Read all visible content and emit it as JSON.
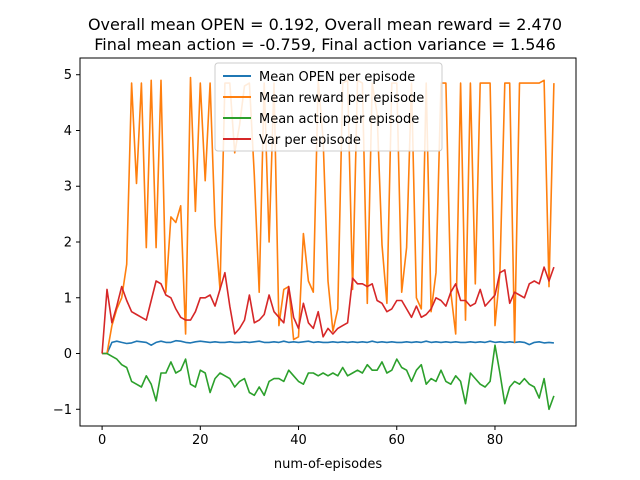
{
  "chart_data": {
    "type": "line",
    "title_lines": [
      "Overall mean OPEN = 0.192, Overall mean reward = 2.470",
      "Final mean action = -0.759, Final action variance = 1.546"
    ],
    "xlabel": "num-of-episodes",
    "ylabel": "",
    "xlim": [
      -4.5,
      96.5
    ],
    "ylim": [
      -1.3,
      5.3
    ],
    "xticks": [
      0,
      20,
      40,
      60,
      80
    ],
    "yticks": [
      -1,
      0,
      1,
      2,
      3,
      4,
      5
    ],
    "x_start": 0,
    "legend_position": "top-center",
    "series": [
      {
        "name": "Mean OPEN per episode",
        "color": "#1f77b4",
        "values": [
          0,
          0,
          0.2,
          0.22,
          0.2,
          0.18,
          0.19,
          0.22,
          0.21,
          0.2,
          0.15,
          0.2,
          0.22,
          0.2,
          0.2,
          0.23,
          0.22,
          0.2,
          0.19,
          0.21,
          0.22,
          0.21,
          0.2,
          0.21,
          0.2,
          0.2,
          0.21,
          0.2,
          0.2,
          0.21,
          0.2,
          0.21,
          0.22,
          0.2,
          0.2,
          0.21,
          0.2,
          0.22,
          0.2,
          0.21,
          0.2,
          0.21,
          0.22,
          0.2,
          0.21,
          0.2,
          0.2,
          0.21,
          0.2,
          0.21,
          0.2,
          0.21,
          0.2,
          0.21,
          0.2,
          0.22,
          0.2,
          0.21,
          0.2,
          0.21,
          0.2,
          0.2,
          0.21,
          0.2,
          0.21,
          0.2,
          0.22,
          0.2,
          0.21,
          0.2,
          0.21,
          0.2,
          0.21,
          0.2,
          0.2,
          0.21,
          0.2,
          0.21,
          0.2,
          0.22,
          0.2,
          0.21,
          0.2,
          0.21,
          0.2,
          0.21,
          0.2,
          0.16,
          0.2,
          0.21,
          0.19,
          0.2,
          0.19
        ]
      },
      {
        "name": "Mean reward per episode",
        "color": "#ff7f0e",
        "values": [
          0,
          0,
          0.5,
          0.8,
          1,
          1.6,
          4.85,
          3.05,
          4.85,
          1.9,
          4.9,
          1.9,
          4.9,
          1.1,
          2.45,
          2.35,
          2.65,
          0.35,
          4.95,
          2.55,
          4.85,
          3.1,
          4.85,
          2.3,
          1.15,
          4.85,
          4.85,
          3.6,
          4.1,
          4.8,
          4.85,
          3.2,
          1.1,
          4.85,
          2.0,
          4.85,
          0.5,
          1.15,
          1.2,
          0.25,
          0.3,
          2.15,
          1.3,
          1.1,
          4.9,
          3.85,
          1.3,
          0.4,
          0.8,
          4.85,
          4.9,
          1.15,
          4.9,
          4.85,
          0.9,
          4.85,
          4.3,
          1.95,
          0.9,
          4.85,
          4.85,
          1.1,
          1.9,
          4.85,
          1.0,
          0.8,
          4.85,
          0.75,
          1.45,
          4.85,
          4.85,
          1.1,
          0.35,
          4.85,
          0.6,
          4.85,
          1.25,
          4.85,
          4.85,
          4.85,
          0.5,
          1.45,
          4.85,
          4.85,
          0.2,
          4.85,
          4.85,
          4.85,
          4.85,
          4.85,
          4.9,
          1.2,
          4.85
        ]
      },
      {
        "name": "Mean action per episode",
        "color": "#2ca02c",
        "values": [
          0,
          0,
          -0.05,
          -0.1,
          -0.2,
          -0.25,
          -0.5,
          -0.55,
          -0.6,
          -0.4,
          -0.55,
          -0.85,
          -0.35,
          -0.35,
          -0.15,
          -0.35,
          -0.3,
          -0.1,
          -0.55,
          -0.6,
          -0.3,
          -0.35,
          -0.7,
          -0.45,
          -0.35,
          -0.4,
          -0.45,
          -0.6,
          -0.5,
          -0.45,
          -0.7,
          -0.75,
          -0.6,
          -0.75,
          -0.5,
          -0.45,
          -0.45,
          -0.5,
          -0.3,
          -0.4,
          -0.5,
          -0.55,
          -0.35,
          -0.35,
          -0.4,
          -0.35,
          -0.4,
          -0.35,
          -0.4,
          -0.25,
          -0.4,
          -0.35,
          -0.3,
          -0.35,
          -0.2,
          -0.3,
          -0.3,
          -0.15,
          -0.35,
          -0.3,
          -0.1,
          -0.25,
          -0.3,
          -0.5,
          -0.3,
          -0.2,
          -0.55,
          -0.45,
          -0.5,
          -0.3,
          -0.5,
          -0.55,
          -0.4,
          -0.5,
          -0.9,
          -0.35,
          -0.45,
          -0.55,
          -0.6,
          -0.5,
          0.15,
          -0.35,
          -0.9,
          -0.6,
          -0.5,
          -0.55,
          -0.45,
          -0.55,
          -0.6,
          -0.8,
          -0.45,
          -1.0,
          -0.76
        ]
      },
      {
        "name": "Var per episode",
        "color": "#d62728",
        "values": [
          0,
          1.15,
          0.55,
          0.85,
          1.2,
          0.95,
          0.75,
          0.7,
          0.65,
          0.6,
          0.95,
          1.3,
          1.25,
          1.05,
          1.0,
          0.8,
          0.65,
          0.6,
          0.6,
          0.75,
          1.0,
          1.0,
          1.05,
          0.85,
          1.15,
          1.45,
          0.85,
          0.35,
          0.45,
          0.6,
          1.05,
          0.55,
          0.6,
          0.7,
          1.05,
          0.75,
          0.65,
          0.55,
          1.2,
          0.65,
          0.45,
          0.9,
          0.55,
          0.45,
          0.75,
          0.3,
          0.45,
          0.35,
          0.45,
          0.5,
          0.55,
          1.35,
          1.25,
          1.25,
          1.2,
          1.25,
          0.95,
          0.9,
          0.75,
          0.8,
          0.95,
          0.95,
          0.8,
          0.65,
          0.85,
          0.65,
          0.7,
          0.8,
          1.0,
          0.95,
          0.85,
          1.1,
          1.25,
          0.95,
          0.95,
          0.85,
          0.9,
          1.15,
          0.85,
          0.95,
          1.05,
          1.45,
          1.5,
          0.9,
          1.1,
          1.05,
          1.0,
          1.25,
          1.3,
          1.25,
          1.55,
          1.3,
          1.55
        ]
      }
    ]
  }
}
